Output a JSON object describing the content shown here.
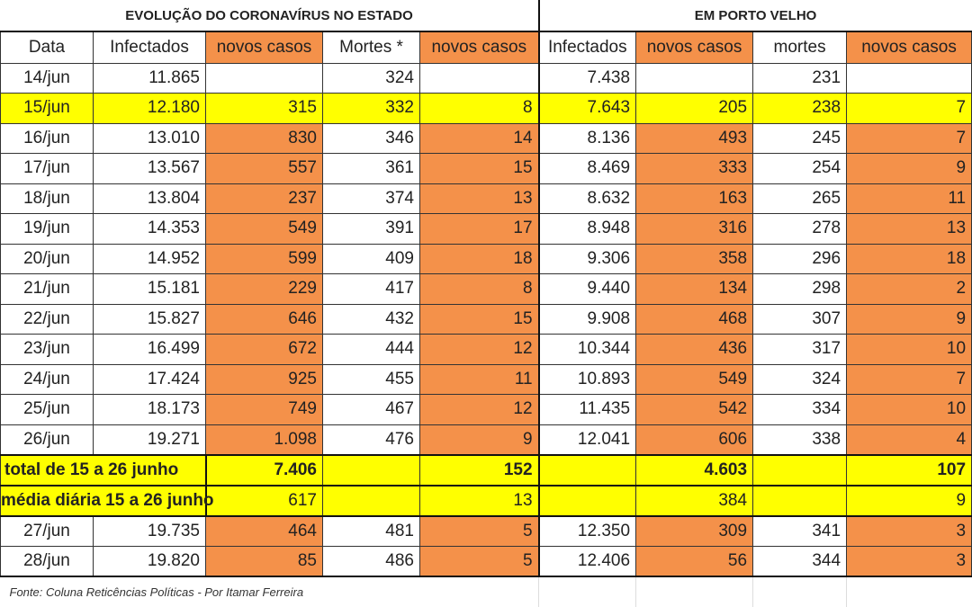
{
  "title_state": "EVOLUÇÃO DO CORONAVÍRUS NO ESTADO",
  "title_city": "EM PORTO VELHO",
  "headers": [
    "Data",
    "Infectados",
    "novos casos",
    "Mortes *",
    "novos casos",
    "Infectados",
    "novos casos",
    "mortes",
    "novos casos"
  ],
  "rows": [
    [
      "14/jun",
      "11.865",
      "",
      "324",
      "",
      "7.438",
      "",
      "231",
      ""
    ],
    [
      "15/jun",
      "12.180",
      "315",
      "332",
      "8",
      "7.643",
      "205",
      "238",
      "7"
    ],
    [
      "16/jun",
      "13.010",
      "830",
      "346",
      "14",
      "8.136",
      "493",
      "245",
      "7"
    ],
    [
      "17/jun",
      "13.567",
      "557",
      "361",
      "15",
      "8.469",
      "333",
      "254",
      "9"
    ],
    [
      "18/jun",
      "13.804",
      "237",
      "374",
      "13",
      "8.632",
      "163",
      "265",
      "11"
    ],
    [
      "19/jun",
      "14.353",
      "549",
      "391",
      "17",
      "8.948",
      "316",
      "278",
      "13"
    ],
    [
      "20/jun",
      "14.952",
      "599",
      "409",
      "18",
      "9.306",
      "358",
      "296",
      "18"
    ],
    [
      "21/jun",
      "15.181",
      "229",
      "417",
      "8",
      "9.440",
      "134",
      "298",
      "2"
    ],
    [
      "22/jun",
      "15.827",
      "646",
      "432",
      "15",
      "9.908",
      "468",
      "307",
      "9"
    ],
    [
      "23/jun",
      "16.499",
      "672",
      "444",
      "12",
      "10.344",
      "436",
      "317",
      "10"
    ],
    [
      "24/jun",
      "17.424",
      "925",
      "455",
      "11",
      "10.893",
      "549",
      "324",
      "7"
    ],
    [
      "25/jun",
      "18.173",
      "749",
      "467",
      "12",
      "11.435",
      "542",
      "334",
      "10"
    ],
    [
      "26/jun",
      "19.271",
      "1.098",
      "476",
      "9",
      "12.041",
      "606",
      "338",
      "4"
    ]
  ],
  "total": {
    "label": "total de 15 a 26 junho",
    "state_cases": "7.406",
    "state_deaths": "152",
    "city_cases": "4.603",
    "city_deaths": "107"
  },
  "average": {
    "label": "média diária 15 a 26 junho",
    "state_cases": "617",
    "state_deaths": "13",
    "city_cases": "384",
    "city_deaths": "9"
  },
  "rows_after": [
    [
      "27/jun",
      "19.735",
      "464",
      "481",
      "5",
      "12.350",
      "309",
      "341",
      "3"
    ],
    [
      "28/jun",
      "19.820",
      "85",
      "486",
      "5",
      "12.406",
      "56",
      "344",
      "3"
    ]
  ],
  "source": "Fonte: Coluna Reticências Políticas - Por Itamar Ferreira",
  "colors": {
    "orange": "#f4914a",
    "yellow": "#ffff00"
  }
}
